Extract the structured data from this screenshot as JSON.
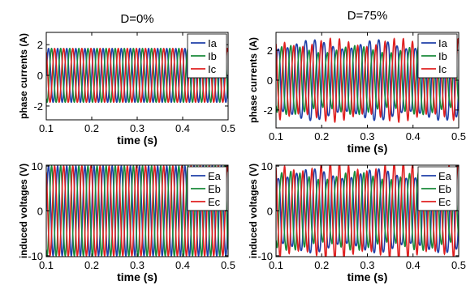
{
  "chart_data": [
    {
      "type": "line",
      "title": "D=0%",
      "xlabel": "time (s)",
      "ylabel": "phase currents (A)",
      "xlim": [
        0.1,
        0.5
      ],
      "ylim": [
        -2.9,
        2.8
      ],
      "x_ticks": [
        "0.1",
        "0.2",
        "0.3",
        "0.4",
        "0.5"
      ],
      "y_ticks": [
        "2",
        "0",
        "-2"
      ],
      "y_tick_values": [
        2,
        0,
        -2
      ],
      "frequency_hz": 50,
      "legend_position": "top-right",
      "series": [
        {
          "name": "Ia",
          "color": "#1f3fa8",
          "amplitude": 1.75,
          "phase_deg": 0
        },
        {
          "name": "Ib",
          "color": "#1a8a3a",
          "amplitude": 1.75,
          "phase_deg": -120
        },
        {
          "name": "Ic",
          "color": "#e02020",
          "amplitude": 1.75,
          "phase_deg": 120
        }
      ]
    },
    {
      "type": "line",
      "title": "D=75%",
      "xlabel": "time (s)",
      "ylabel": "phase currents (A)",
      "xlim": [
        0.1,
        0.5
      ],
      "ylim": [
        -3.2,
        3.2
      ],
      "x_ticks": [
        "0.1",
        "0.2",
        "0.3",
        "0.4",
        "0.5"
      ],
      "y_ticks": [
        "2",
        "0",
        "-2"
      ],
      "y_tick_values": [
        2,
        0,
        -2
      ],
      "frequency_hz": 50,
      "legend_position": "top-right",
      "series": [
        {
          "name": "Ia",
          "color": "#1f3fa8",
          "amplitude": 2.6,
          "phase_deg": 0
        },
        {
          "name": "Ib",
          "color": "#1a8a3a",
          "amplitude": 2.1,
          "phase_deg": -120
        },
        {
          "name": "Ic",
          "color": "#e02020",
          "amplitude": 2.4,
          "phase_deg": 120
        }
      ]
    },
    {
      "type": "line",
      "title": "",
      "xlabel": "time (s)",
      "ylabel": "induced voltages (V)",
      "xlim": [
        0.1,
        0.5
      ],
      "ylim": [
        -10.2,
        10.2
      ],
      "x_ticks": [
        "0.1",
        "0.2",
        "0.3",
        "0.4",
        "0.5"
      ],
      "y_ticks": [
        "10",
        "0",
        "-10"
      ],
      "y_tick_values": [
        10,
        0,
        -10
      ],
      "frequency_hz": 50,
      "legend_position": "top-right",
      "series": [
        {
          "name": "Ea",
          "color": "#1f3fa8",
          "amplitude": 10,
          "phase_deg": 0
        },
        {
          "name": "Eb",
          "color": "#1a8a3a",
          "amplitude": 10,
          "phase_deg": -120
        },
        {
          "name": "Ec",
          "color": "#e02020",
          "amplitude": 10,
          "phase_deg": 120
        }
      ]
    },
    {
      "type": "line",
      "title": "",
      "xlabel": "time (s)",
      "ylabel": "induced voltages (V)",
      "xlim": [
        0.1,
        0.5
      ],
      "ylim": [
        -10.2,
        10.2
      ],
      "x_ticks": [
        "0.1",
        "0.2",
        "0.3",
        "0.4",
        "0.5"
      ],
      "y_ticks": [
        "10",
        "0",
        "-10"
      ],
      "y_tick_values": [
        10,
        0,
        -10
      ],
      "frequency_hz": 50,
      "legend_position": "top-right",
      "series": [
        {
          "name": "Ea",
          "color": "#1f3fa8",
          "amplitude": 9.0,
          "phase_deg": 0
        },
        {
          "name": "Eb",
          "color": "#1a8a3a",
          "amplitude": 8.0,
          "phase_deg": -120
        },
        {
          "name": "Ec",
          "color": "#e02020",
          "amplitude": 9.5,
          "phase_deg": 120
        }
      ]
    }
  ]
}
